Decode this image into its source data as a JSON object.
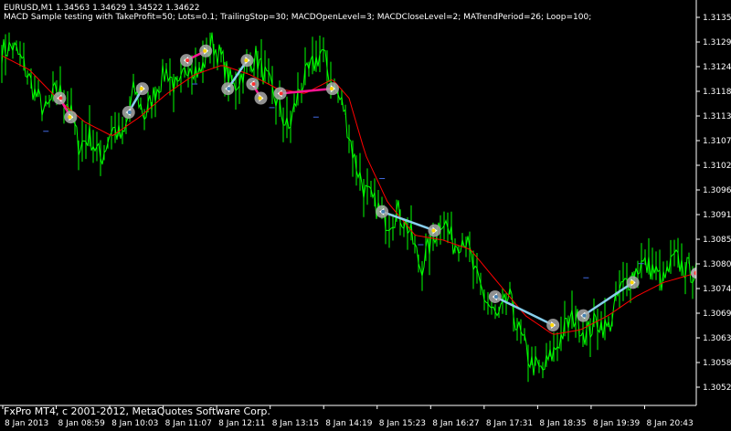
{
  "header": {
    "symbol": "EURUSD,M1",
    "ohlc": "1.34563 1.34629 1.34522 1.34622",
    "expert_params": "MACD Sample testing with TakeProfit=50; Lots=0.1; TrailingStop=30; MACDOpenLevel=3; MACDCloseLevel=2; MATrendPeriod=26; Loop=100;"
  },
  "footer": {
    "copyright": "FxPro MT4, c 2001-2012, MetaQuotes Software Corp."
  },
  "colors": {
    "background": "#000000",
    "price": "#00ff00",
    "ma": "#ff0000",
    "buy_trade_line": "#87ceeb",
    "sell_trade_line": "#ff1493",
    "marker": "#a9a9a9",
    "axis": "#ffffff",
    "pending": "#4169e1"
  },
  "chart_data": {
    "type": "line",
    "symbol": "EURUSD",
    "timeframe": "M1",
    "x_ticks": [
      "8 Jan 2013",
      "8 Jan 08:59",
      "8 Jan 10:03",
      "8 Jan 11:07",
      "8 Jan 12:11",
      "8 Jan 13:15",
      "8 Jan 14:19",
      "8 Jan 15:23",
      "8 Jan 16:27",
      "8 Jan 17:31",
      "8 Jan 18:35",
      "8 Jan 19:39",
      "8 Jan 20:43"
    ],
    "y_ticks": [
      "1.31350",
      "1.31295",
      "1.31240",
      "1.31185",
      "1.31130",
      "1.31075",
      "1.31020",
      "1.30965",
      "1.30910",
      "1.30855",
      "1.30800",
      "1.30745",
      "1.30690",
      "1.30635",
      "1.30580",
      "1.30525"
    ],
    "ylim": [
      1.3051,
      1.3136
    ],
    "x_range": [
      0,
      12.6
    ],
    "price_anchors": [
      [
        0.0,
        1.3126
      ],
      [
        0.2,
        1.3127
      ],
      [
        0.4,
        1.3123
      ],
      [
        0.6,
        1.3117
      ],
      [
        0.8,
        1.3113
      ],
      [
        1.0,
        1.3118
      ],
      [
        1.2,
        1.3115
      ],
      [
        1.4,
        1.3106
      ],
      [
        1.6,
        1.3108
      ],
      [
        1.8,
        1.3103
      ],
      [
        2.0,
        1.311
      ],
      [
        2.2,
        1.3107
      ],
      [
        2.4,
        1.3118
      ],
      [
        2.6,
        1.3112
      ],
      [
        2.8,
        1.3118
      ],
      [
        3.0,
        1.3122
      ],
      [
        3.2,
        1.3117
      ],
      [
        3.4,
        1.3124
      ],
      [
        3.6,
        1.3121
      ],
      [
        3.8,
        1.3128
      ],
      [
        4.0,
        1.3124
      ],
      [
        4.2,
        1.3118
      ],
      [
        4.4,
        1.3122
      ],
      [
        4.6,
        1.3125
      ],
      [
        4.8,
        1.312
      ],
      [
        5.0,
        1.3115
      ],
      [
        5.2,
        1.3109
      ],
      [
        5.4,
        1.3118
      ],
      [
        5.6,
        1.3122
      ],
      [
        5.8,
        1.3126
      ],
      [
        6.0,
        1.3119
      ],
      [
        6.2,
        1.3114
      ],
      [
        6.4,
        1.3103
      ],
      [
        6.6,
        1.3096
      ],
      [
        6.8,
        1.3093
      ],
      [
        7.0,
        1.309
      ],
      [
        7.2,
        1.3092
      ],
      [
        7.4,
        1.3088
      ],
      [
        7.6,
        1.308
      ],
      [
        7.8,
        1.3086
      ],
      [
        8.0,
        1.3091
      ],
      [
        8.2,
        1.3085
      ],
      [
        8.4,
        1.3087
      ],
      [
        8.6,
        1.3078
      ],
      [
        8.8,
        1.3073
      ],
      [
        9.0,
        1.3069
      ],
      [
        9.2,
        1.3074
      ],
      [
        9.4,
        1.3066
      ],
      [
        9.6,
        1.306
      ],
      [
        9.8,
        1.3058
      ],
      [
        10.0,
        1.3062
      ],
      [
        10.2,
        1.3067
      ],
      [
        10.4,
        1.307
      ],
      [
        10.6,
        1.3066
      ],
      [
        10.8,
        1.3069
      ],
      [
        11.0,
        1.3067
      ],
      [
        11.2,
        1.3075
      ],
      [
        11.4,
        1.3078
      ],
      [
        11.6,
        1.3081
      ],
      [
        11.8,
        1.308
      ],
      [
        12.0,
        1.3077
      ],
      [
        12.2,
        1.3082
      ],
      [
        12.4,
        1.308
      ],
      [
        12.6,
        1.3079
      ]
    ],
    "ma_anchors": [
      [
        0.0,
        1.3125
      ],
      [
        0.5,
        1.3122
      ],
      [
        1.0,
        1.3116
      ],
      [
        1.5,
        1.3111
      ],
      [
        2.0,
        1.3108
      ],
      [
        2.5,
        1.3112
      ],
      [
        3.0,
        1.3117
      ],
      [
        3.5,
        1.3121
      ],
      [
        4.0,
        1.3123
      ],
      [
        4.5,
        1.3121
      ],
      [
        5.0,
        1.3118
      ],
      [
        5.5,
        1.3117
      ],
      [
        6.0,
        1.312
      ],
      [
        6.3,
        1.3116
      ],
      [
        6.6,
        1.3104
      ],
      [
        7.0,
        1.3094
      ],
      [
        7.5,
        1.3087
      ],
      [
        8.0,
        1.3086
      ],
      [
        8.5,
        1.3084
      ],
      [
        9.0,
        1.3077
      ],
      [
        9.5,
        1.307
      ],
      [
        10.0,
        1.3066
      ],
      [
        10.5,
        1.3067
      ],
      [
        11.0,
        1.307
      ],
      [
        11.5,
        1.3074
      ],
      [
        12.0,
        1.3077
      ],
      [
        12.6,
        1.3079
      ]
    ],
    "trades": [
      {
        "side": "sell",
        "open": [
          1.05,
          1.3116
        ],
        "close": [
          1.25,
          1.3112
        ]
      },
      {
        "side": "buy",
        "open": [
          2.3,
          1.3113
        ],
        "close": [
          2.55,
          1.3118
        ]
      },
      {
        "side": "sell",
        "open": [
          3.35,
          1.3124
        ],
        "close": [
          3.7,
          1.3126
        ]
      },
      {
        "side": "buy",
        "open": [
          4.1,
          1.3118
        ],
        "close": [
          4.45,
          1.3124
        ]
      },
      {
        "side": "sell",
        "open": [
          4.55,
          1.3119
        ],
        "close": [
          4.7,
          1.3116
        ]
      },
      {
        "side": "sell",
        "open": [
          5.05,
          1.3117
        ],
        "close": [
          6.0,
          1.3118
        ]
      },
      {
        "side": "buy",
        "open": [
          6.9,
          1.3092
        ],
        "close": [
          7.85,
          1.3088
        ]
      },
      {
        "side": "buy",
        "open": [
          8.95,
          1.3074
        ],
        "close": [
          10.0,
          1.3068
        ]
      },
      {
        "side": "buy",
        "open": [
          10.55,
          1.307
        ],
        "close": [
          11.45,
          1.3077
        ]
      }
    ],
    "pending_marks": [
      [
        0.8,
        1.3109
      ],
      [
        3.5,
        1.3119
      ],
      [
        4.9,
        1.3114
      ],
      [
        5.7,
        1.3112
      ],
      [
        6.9,
        1.3099
      ],
      [
        7.6,
        1.3085
      ],
      [
        10.6,
        1.3078
      ],
      [
        11.6,
        1.3081
      ]
    ],
    "last_marker": [
      12.6,
      1.3079
    ],
    "grid": false,
    "legend": "none"
  }
}
